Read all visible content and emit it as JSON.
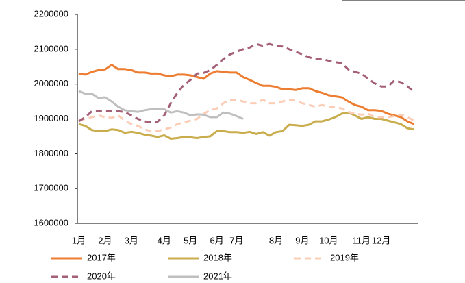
{
  "chart_data": {
    "type": "line",
    "categories": [
      "1月",
      null,
      null,
      null,
      "2月",
      null,
      null,
      null,
      "3月",
      null,
      null,
      null,
      null,
      "4月",
      null,
      null,
      null,
      "5月",
      null,
      null,
      null,
      "6月",
      null,
      null,
      "7月",
      null,
      null,
      null,
      null,
      null,
      "8月",
      null,
      null,
      null,
      "9月",
      null,
      null,
      null,
      "10月",
      null,
      null,
      null,
      null,
      "11月",
      null,
      null,
      "12月",
      null,
      null,
      null,
      null,
      null
    ],
    "ylim": [
      1600000,
      2200000
    ],
    "yticks": [
      1600000,
      1700000,
      1800000,
      1900000,
      2000000,
      2100000,
      2200000
    ],
    "grid": false,
    "legend": "bottom",
    "series": [
      {
        "name": "2017年",
        "color": "#ed7d31",
        "dash": false,
        "values": [
          2030000,
          2027000,
          2035000,
          2040000,
          2042000,
          2055000,
          2043000,
          2043000,
          2040000,
          2033000,
          2033000,
          2030000,
          2030000,
          2025000,
          2022000,
          2027000,
          2027000,
          2025000,
          2020000,
          2015000,
          2030000,
          2037000,
          2035000,
          2033000,
          2033000,
          2020000,
          2012000,
          2003000,
          1995000,
          1995000,
          1992000,
          1985000,
          1985000,
          1983000,
          1988000,
          1988000,
          1980000,
          1975000,
          1968000,
          1965000,
          1962000,
          1950000,
          1940000,
          1935000,
          1925000,
          1925000,
          1923000,
          1915000,
          1910000,
          1905000,
          1893000,
          1885000
        ]
      },
      {
        "name": "2018年",
        "color": "#c9ac4c",
        "dash": false,
        "values": [
          1885000,
          1880000,
          1868000,
          1865000,
          1865000,
          1870000,
          1868000,
          1860000,
          1863000,
          1860000,
          1855000,
          1852000,
          1848000,
          1853000,
          1843000,
          1845000,
          1848000,
          1847000,
          1845000,
          1848000,
          1850000,
          1865000,
          1865000,
          1862000,
          1862000,
          1860000,
          1863000,
          1857000,
          1862000,
          1852000,
          1862000,
          1865000,
          1883000,
          1882000,
          1880000,
          1883000,
          1893000,
          1893000,
          1898000,
          1905000,
          1915000,
          1918000,
          1910000,
          1900000,
          1905000,
          1900000,
          1900000,
          1895000,
          1890000,
          1885000,
          1873000,
          1870000
        ]
      },
      {
        "name": "2019年",
        "color": "#fbcdb6",
        "dash": true,
        "values": [
          1895000,
          1900000,
          1905000,
          1910000,
          1905000,
          1903000,
          1910000,
          1895000,
          1885000,
          1880000,
          1870000,
          1865000,
          1865000,
          1870000,
          1875000,
          1885000,
          1890000,
          1895000,
          1900000,
          1915000,
          1925000,
          1930000,
          1945000,
          1955000,
          1955000,
          1950000,
          1945000,
          1945000,
          1955000,
          1945000,
          1945000,
          1950000,
          1955000,
          1952000,
          1945000,
          1940000,
          1935000,
          1940000,
          1935000,
          1935000,
          1930000,
          1920000,
          1915000,
          1912000,
          1915000,
          1905000,
          1905000,
          1905000,
          1908000,
          1912000,
          1905000,
          1895000
        ]
      },
      {
        "name": "2020年",
        "color": "#a45f79",
        "dash": true,
        "values": [
          1893000,
          1905000,
          1922000,
          1923000,
          1923000,
          1922000,
          1922000,
          1920000,
          1910000,
          1900000,
          1893000,
          1890000,
          1892000,
          1910000,
          1945000,
          1975000,
          1998000,
          2012000,
          2030000,
          2032000,
          2040000,
          2055000,
          2072000,
          2085000,
          2093000,
          2100000,
          2105000,
          2115000,
          2110000,
          2115000,
          2110000,
          2108000,
          2100000,
          2093000,
          2085000,
          2077000,
          2072000,
          2072000,
          2067000,
          2063000,
          2060000,
          2042000,
          2035000,
          2030000,
          2015000,
          2002000,
          1993000,
          1993000,
          2010000,
          2005000,
          1993000,
          1978000
        ]
      },
      {
        "name": "2021年",
        "color": "#bfbfbf",
        "dash": false,
        "values": [
          1980000,
          1972000,
          1972000,
          1960000,
          1962000,
          1950000,
          1935000,
          1925000,
          1922000,
          1920000,
          1925000,
          1928000,
          1928000,
          1928000,
          1918000,
          1922000,
          1918000,
          1910000,
          1913000,
          1912000,
          1905000,
          1905000,
          1918000,
          1915000,
          1908000,
          1900000,
          null,
          null,
          null,
          null,
          null,
          null,
          null,
          null,
          null,
          null,
          null,
          null,
          null,
          null,
          null,
          null,
          null,
          null,
          null,
          null,
          null,
          null,
          null,
          null,
          null,
          null
        ]
      }
    ]
  }
}
